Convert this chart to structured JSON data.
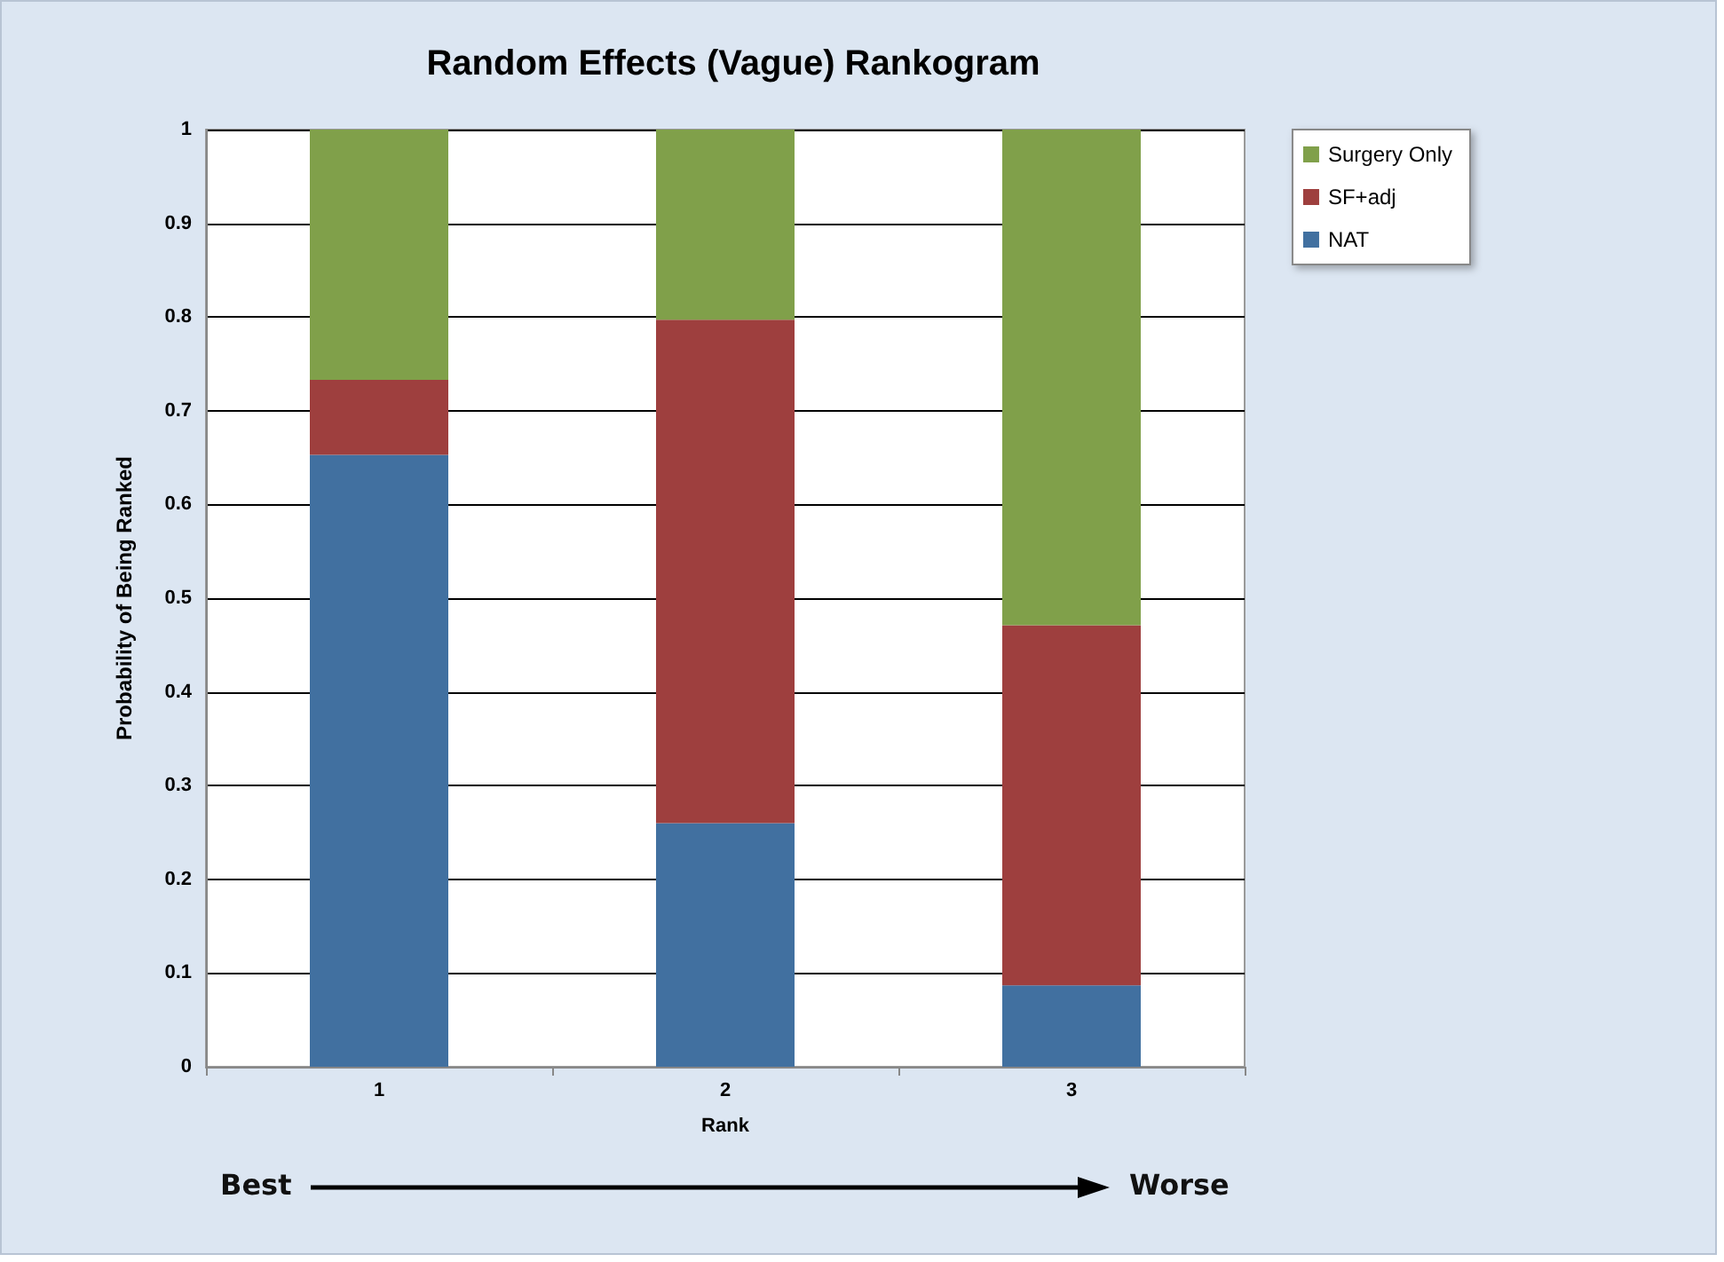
{
  "chart_data": {
    "type": "bar",
    "title": "Random Effects (Vague) Rankogram",
    "xlabel": "Rank",
    "ylabel": "Probability of Being Ranked",
    "categories": [
      "1",
      "2",
      "3"
    ],
    "stacked": true,
    "series": [
      {
        "name": "NAT",
        "color": "#4170a0",
        "values": [
          0.653,
          0.26,
          0.087
        ]
      },
      {
        "name": "SF+adj",
        "color": "#9e3f3e",
        "values": [
          0.08,
          0.537,
          0.384
        ]
      },
      {
        "name": "Surgery Only",
        "color": "#80a04a",
        "values": [
          0.267,
          0.203,
          0.529
        ]
      }
    ],
    "ylim": [
      0,
      1
    ],
    "yticks": [
      0,
      0.1,
      0.2,
      0.3,
      0.4,
      0.5,
      0.6,
      0.7,
      0.8,
      0.9,
      1
    ],
    "grid": "y",
    "legend": "top right",
    "annotations": [
      "Best",
      "Worse"
    ]
  }
}
